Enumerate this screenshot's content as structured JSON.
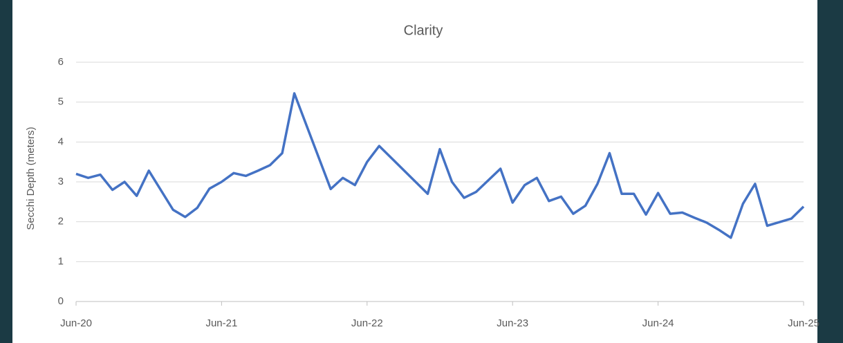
{
  "chart_data": {
    "type": "line",
    "title": "Clarity",
    "y_label": "Secchi Depth (meters)",
    "x": [
      "Jun-20",
      "Jul-20",
      "Aug-20",
      "Sep-20",
      "Oct-20",
      "Nov-20",
      "Dec-20",
      "Feb-21",
      "Mar-21",
      "Apr-21",
      "May-21",
      "Jun-21",
      "Jul-21",
      "Aug-21",
      "Sep-21",
      "Oct-21",
      "Nov-21",
      "Dec-21",
      "Feb-22",
      "Mar-22",
      "Apr-22",
      "May-22",
      "Jun-22",
      "Jul-22",
      "Aug-22",
      "Nov-22",
      "Dec-22",
      "Jan-23",
      "Feb-23",
      "Mar-23",
      "May-23",
      "Jun-23",
      "Jul-23",
      "Aug-23",
      "Sep-23",
      "Oct-23",
      "Nov-23",
      "Dec-23",
      "Jan-24",
      "Feb-24",
      "Mar-24",
      "Apr-24",
      "May-24",
      "Jun-24",
      "Jul-24",
      "Aug-24",
      "Sep-24",
      "Oct-24",
      "Nov-24",
      "Dec-24",
      "Jan-25",
      "Feb-25",
      "Mar-25",
      "May-25",
      "Jun-25"
    ],
    "series": [
      {
        "name": "Secchi Depth",
        "color": "#4472c4",
        "values": [
          3.2,
          3.1,
          3.18,
          2.8,
          3.0,
          2.65,
          3.28,
          2.3,
          2.12,
          2.35,
          2.83,
          3.0,
          3.22,
          3.15,
          3.28,
          3.42,
          3.72,
          5.22,
          3.62,
          2.82,
          3.1,
          2.92,
          3.5,
          3.9,
          3.6,
          2.7,
          3.82,
          3.0,
          2.6,
          2.75,
          3.33,
          2.48,
          2.92,
          3.1,
          2.52,
          2.63,
          2.2,
          2.4,
          2.95,
          3.72,
          2.7,
          2.7,
          2.18,
          2.72,
          2.2,
          2.23,
          2.1,
          1.98,
          1.8,
          1.6,
          2.45,
          2.95,
          1.9,
          2.08,
          2.38
        ]
      }
    ],
    "xlim": [
      "Jun-20",
      "Jun-25"
    ],
    "xticks": [
      "Jun-20",
      "Jun-21",
      "Jun-22",
      "Jun-23",
      "Jun-24",
      "Jun-25"
    ],
    "ylim": [
      0,
      6
    ],
    "yticks": [
      0,
      1,
      2,
      3,
      4,
      5,
      6
    ],
    "grid": true
  }
}
